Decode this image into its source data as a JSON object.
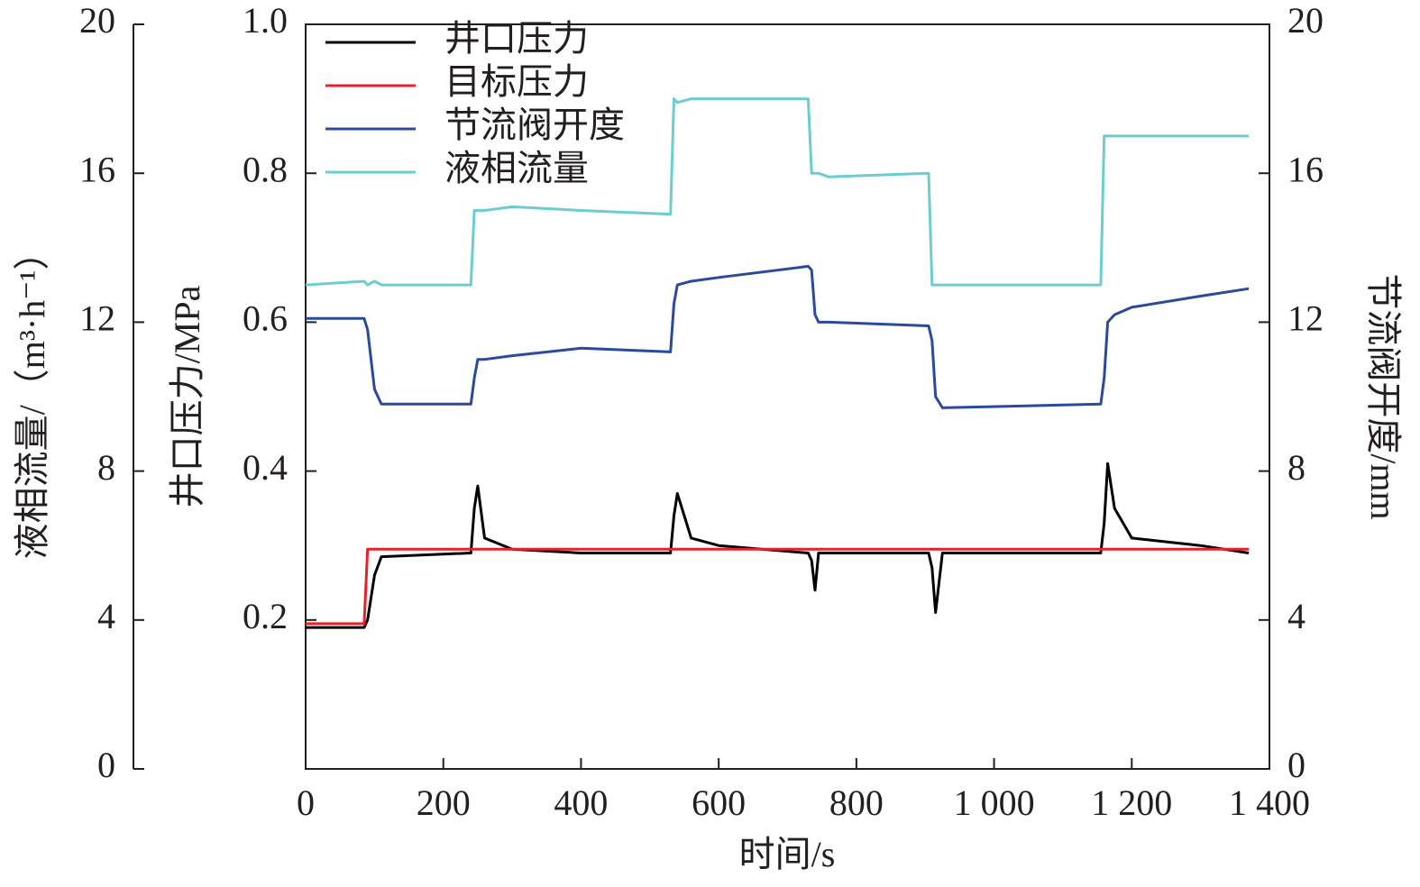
{
  "chart_data": {
    "type": "line",
    "x_label": "时间/s",
    "y_label": "井口压力/MPa",
    "y2_label": "节流阀开度/mm",
    "y3_label": "液相流量/（m³·h⁻¹）",
    "xlim": [
      0,
      1400
    ],
    "xticks": [
      0,
      200,
      400,
      600,
      800,
      {
        "value": 1000,
        "label": "1 000"
      },
      {
        "value": 1200,
        "label": "1 200"
      },
      {
        "value": 1400,
        "label": "1 400"
      }
    ],
    "ylim": [
      0,
      1
    ],
    "yticks": [
      0.2,
      0.4,
      0.6,
      0.8,
      {
        "value": 1,
        "label": "1.0"
      }
    ],
    "y2lim": [
      0,
      20
    ],
    "y2ticks": [
      0,
      4,
      8,
      12,
      16,
      20
    ],
    "y3lim": [
      0,
      20
    ],
    "y3ticks": [
      0,
      4,
      8,
      12,
      16,
      20
    ],
    "legend": "upper left",
    "x": [
      0,
      85,
      90,
      100,
      110,
      240,
      245,
      250,
      260,
      300,
      400,
      530,
      535,
      540,
      560,
      600,
      730,
      735,
      740,
      745,
      760,
      905,
      910,
      915,
      925,
      1155,
      1160,
      1165,
      1175,
      1200,
      1300,
      1370
    ],
    "series": [
      {
        "name": "井口压力",
        "color": "#000000",
        "axis": "y",
        "values": [
          0.19,
          0.19,
          0.2,
          0.26,
          0.285,
          0.29,
          0.35,
          0.38,
          0.31,
          0.295,
          0.29,
          0.29,
          0.34,
          0.37,
          0.31,
          0.3,
          0.29,
          0.28,
          0.24,
          0.29,
          0.29,
          0.29,
          0.27,
          0.21,
          0.29,
          0.29,
          0.33,
          0.41,
          0.35,
          0.31,
          0.3,
          0.29
        ]
      },
      {
        "name": "目标压力",
        "color": "#e8202a",
        "axis": "y",
        "values": [
          0.195,
          0.195,
          0.295,
          0.295,
          0.295,
          0.295,
          0.295,
          0.295,
          0.295,
          0.295,
          0.295,
          0.295,
          0.295,
          0.295,
          0.295,
          0.295,
          0.295,
          0.295,
          0.295,
          0.295,
          0.295,
          0.295,
          0.295,
          0.295,
          0.295,
          0.295,
          0.295,
          0.295,
          0.295,
          0.295,
          0.295,
          0.295
        ]
      },
      {
        "name": "节流阀开度",
        "color": "#2b4a9e",
        "axis": "y2",
        "values": [
          12.1,
          12.1,
          11.8,
          10.2,
          9.8,
          9.8,
          10.5,
          11.0,
          11.0,
          11.1,
          11.3,
          11.2,
          12.5,
          13.0,
          13.1,
          13.2,
          13.5,
          13.4,
          12.2,
          12.0,
          12.0,
          11.9,
          11.5,
          10.0,
          9.7,
          9.8,
          10.5,
          12.0,
          12.2,
          12.4,
          12.7,
          12.9
        ]
      },
      {
        "name": "液相流量",
        "color": "#6ccdd0",
        "axis": "y3",
        "values": [
          13.0,
          13.1,
          13.0,
          13.1,
          13.0,
          13.0,
          15.0,
          15.0,
          15.0,
          15.1,
          15.0,
          14.9,
          18.0,
          17.9,
          18.0,
          18.0,
          18.0,
          16.0,
          16.0,
          16.0,
          15.9,
          16.0,
          13.0,
          13.0,
          13.0,
          13.0,
          17.0,
          17.0,
          17.0,
          17.0,
          17.0,
          17.0
        ]
      }
    ]
  }
}
